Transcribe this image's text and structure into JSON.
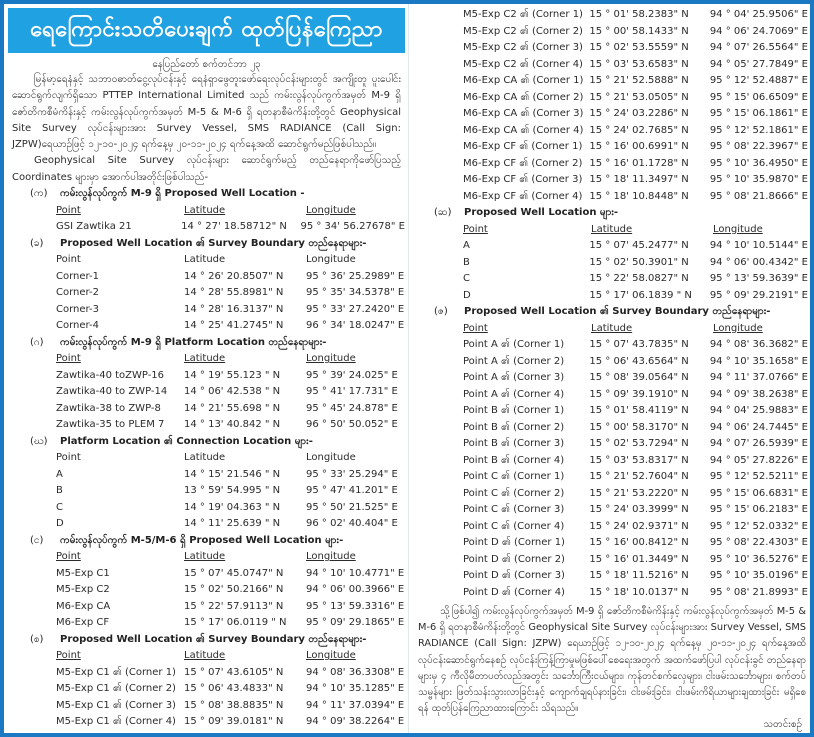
{
  "title": "ရေကြောင်းသတိပေးချက် ထုတ်ပြန်ကြေညာ",
  "dateline": "နေပြည်တော် စက်တင်ဘာ ၂၃",
  "intro_paragraphs": [
    "မြန်မာ့ရေနံနှင့် သဘာဝဓာတ်ငွေ့လုပ်ငန်းနှင့် ရေနံရှာဖွေတူးဖော်ရေးလုပ်ငန်းများတွင် အကျိုးတူ ပူးပေါင်းဆောင်ရွက်လျက်ရှိသော PTTEP International Limited သည် ကမ်းလွန်လုပ်ကွက်အမှတ် M-9 ရှိ ဇော်တိကစီမံကိန်းနှင့် ကမ်းလွန်လုပ်ကွက်အမှတ် M-5 & M-6 ရှိ ရတနာစီမံကိန်းတို့တွင် Geophysical Site Survey လုပ်ငန်းများအား Survey Vessel, SMS RADIANCE (Call Sign: JZPW)ရေယာဉ်ဖြင့် ၁၂-၁၀-၂၀၂၄ ရက်နေ့မှ ၂၀-၁၁-၂၀၂၄ ရက်နေ့အထိ ဆောင်ရွက်မည်ဖြစ်ပါသည်။",
    "Geophysical Site Survey လုပ်ငန်းများ ဆောင်ရွက်မည့် တည်နေရာကိုဖော်ပြသည့် Coordinates များမှာ အောက်ပါအတိုင်းဖြစ်ပါသည်-"
  ],
  "columns": {
    "point": "Point",
    "latitude": "Latitude",
    "longitude": "Longitude"
  },
  "left_sections": [
    {
      "label": "(က)",
      "heading": "ကမ်းလွန်လုပ်ကွက် M-9 ရှိ Proposed Well Location -",
      "underlined": true,
      "rows": [
        [
          "GSI Zawtika 21",
          "14 ° 27' 18.58712\" N",
          "95 ° 34' 56.27678\" E"
        ]
      ]
    },
    {
      "label": "(ခ)",
      "heading": "Proposed Well Location ၏ Survey Boundary တည်နေရာများ-",
      "underlined": false,
      "rows": [
        [
          "Corner-1",
          "14 ° 26' 20.8507\" N",
          "95 ° 36'  25.2989\" E"
        ],
        [
          "Corner-2",
          "14 ° 28' 55.8981\" N",
          "95 ° 35'  34.5378\" E"
        ],
        [
          "Corner-3",
          "14 ° 28' 16.3137\" N",
          "95 ° 33'  27.2420\" E"
        ],
        [
          "Corner-4",
          "14 ° 25' 41.2745\" N",
          "96 ° 34'  18.0247\" E"
        ]
      ]
    },
    {
      "label": "(ဂ)",
      "heading": "ကမ်းလွန်လုပ်ကွက် M-9 ရှိ Platform Location တည်နေရာများ-",
      "underlined": true,
      "rows": [
        [
          "Zawtika-40 toZWP-16",
          "14 ° 19' 55.123 \" N",
          "95 ° 39'  24.025\" E"
        ],
        [
          "Zawtika-40 to ZWP-14",
          "14 ° 06' 42.538 \" N",
          "95 ° 41'  17.731\" E"
        ],
        [
          "Zawtika-38 to ZWP-8",
          "14 ° 21' 55.698 \" N",
          "95 ° 45'  24.878\" E"
        ],
        [
          "Zawtika-35 to PLEM 7",
          "14 ° 13' 40.842 \" N",
          "96 ° 50'  50.052\" E"
        ]
      ]
    },
    {
      "label": "(ဃ)",
      "heading": "Platform Location ၏ Connection Location များ-",
      "underlined": false,
      "rows": [
        [
          "A",
          "14 ° 15' 21.546 \" N",
          "95 ° 33'  25.294\" E"
        ],
        [
          "B",
          "13 ° 59' 54.995 \" N",
          "95 ° 47'  41.201\" E"
        ],
        [
          "C",
          "14 ° 19' 04.363 \" N",
          "95 ° 50'  21.525\" E"
        ],
        [
          "D",
          "14 ° 11' 25.639 \" N",
          "96 ° 02'  40.404\" E"
        ]
      ]
    },
    {
      "label": "(င)",
      "heading": "ကမ်းလွန်လုပ်ကွက် M-5/M-6 ရှိ Proposed Well Location များ-",
      "underlined": true,
      "rows": [
        [
          "M5-Exp C1",
          "15 ° 07' 45.0747\" N",
          "94 ° 10'  10.4771\" E"
        ],
        [
          "M5-Exp C2",
          "15 ° 02' 50.2166\" N",
          "94 ° 06'  00.3966\" E"
        ],
        [
          "M6-Exp CA",
          "15 ° 22' 57.9113\" N",
          "95 ° 13'  59.3316\" E"
        ],
        [
          "M6-Exp CF",
          "15 ° 17' 06.0119 \" N",
          "95 ° 09'  29.1865\" E"
        ]
      ]
    },
    {
      "label": "(စ)",
      "heading": "Proposed Well Location ၏ Survey Boundary တည်နေရာများ-",
      "underlined": true,
      "rows": [
        [
          "M5-Exp C1 ၏ (Corner 1)",
          "15 ° 07' 43.6105\" N",
          "94 ° 08'  36.3308\" E"
        ],
        [
          "M5-Exp C1 ၏ (Corner 2)",
          "15 ° 06' 43.4833\" N",
          "94 ° 10'  35.1285\" E"
        ],
        [
          "M5-Exp C1 ၏ (Corner 3)",
          "15 ° 08' 38.8835\" N",
          "94 ° 11'  37.0394\" E"
        ],
        [
          "M5-Exp C1 ၏ (Corner 4)",
          "15 ° 09' 39.0181\" N",
          "94 ° 09'  38.2264\" E"
        ]
      ]
    }
  ],
  "right_sections": [
    {
      "label": "",
      "heading": "",
      "continuation": true,
      "rows": [
        [
          "M5-Exp C2 ၏ (Corner 1)",
          "15 ° 01' 58.2383\" N",
          "94 ° 04'  25.9506\" E"
        ],
        [
          "M5-Exp C2 ၏ (Corner 2)",
          "15 ° 00' 58.1433\" N",
          "94 ° 06'  24.7069\" E"
        ],
        [
          "M5-Exp C2 ၏ (Corner 3)",
          "15 ° 02' 53.5559\" N",
          "94 ° 07'  26.5564\" E"
        ],
        [
          "M5-Exp C2 ၏ (Corner 4)",
          "15 ° 03' 53.6583\" N",
          "94 ° 05'  27.7849\" E"
        ],
        [
          "M6-Exp CA ၏ (Corner 1)",
          "15 ° 21' 52.5888\" N",
          "95 ° 12'  52.4887\" E"
        ],
        [
          "M6-Exp CA ၏ (Corner 2)",
          "15 ° 21' 53.0505\" N",
          "95 ° 15'  06.6509\" E"
        ],
        [
          "M6-Exp CA ၏ (Corner 3)",
          "15 ° 24' 03.2286\" N",
          "95 ° 15'  06.1861\" E"
        ],
        [
          "M6-Exp CA ၏ (Corner 4)",
          "15 ° 24' 02.7685\" N",
          "95 ° 12'  52.1861\" E"
        ],
        [
          "M6-Exp CF ၏ (Corner 1)",
          "15 ° 16' 00.6991\" N",
          "95 ° 08'  22.3967\" E"
        ],
        [
          "M6-Exp CF ၏ (Corner 2)",
          "15 ° 16' 01.1728\" N",
          "95 ° 10'  36.4950\" E"
        ],
        [
          "M6-Exp CF ၏ (Corner 3)",
          "15 ° 18' 11.3497\" N",
          "95 ° 10'  35.9870\" E"
        ],
        [
          "M6-Exp CF ၏ (Corner 4)",
          "15 ° 18' 10.8448\" N",
          "95 ° 08'  21.8666\" E"
        ]
      ]
    },
    {
      "label": "(ဆ)",
      "heading": "Proposed Well Location များ-",
      "underlined": true,
      "rows": [
        [
          "A",
          "15 ° 07' 45.2477\" N",
          "94 ° 10'  10.5144\" E"
        ],
        [
          "B",
          "15 ° 02' 50.3901\" N",
          "94 ° 06'  00.4342\" E"
        ],
        [
          "C",
          "15 ° 22' 58.0827\" N",
          "95 ° 13'  59.3639\" E"
        ],
        [
          "D",
          "15 ° 17' 06.1839 \" N",
          "95 ° 09'  29.2191\" E"
        ]
      ]
    },
    {
      "label": "(ဇ)",
      "heading": "Proposed Well Location ၏ Survey Boundary တည်နေရာများ-",
      "underlined": true,
      "rows": [
        [
          "Point A ၏ (Corner 1)",
          "15 ° 07' 43.7835\" N",
          "94 ° 08'  36.3682\" E"
        ],
        [
          "Point A ၏ (Corner 2)",
          "15 ° 06' 43.6564\" N",
          "94 ° 10'  35.1658\" E"
        ],
        [
          "Point A ၏ (Corner 3)",
          "15 ° 08' 39.0564\" N",
          "94 ° 11'  37.0766\" E"
        ],
        [
          "Point A ၏ (Corner 4)",
          "15 ° 09' 39.1910\" N",
          "94 ° 09'  38.2638\" E"
        ],
        [
          "Point B ၏ (Corner 1)",
          "15 ° 01' 58.4119\" N",
          "94 ° 04'  25.9883\" E"
        ],
        [
          "Point B ၏ (Corner 2)",
          "15 ° 00' 58.3170\" N",
          "94 ° 06'  24.7445\" E"
        ],
        [
          "Point B ၏ (Corner 3)",
          "15 ° 02' 53.7294\" N",
          "94 ° 07'  26.5939\" E"
        ],
        [
          "Point B ၏ (Corner 4)",
          "15 ° 03' 53.8317\" N",
          "94 ° 05'  27.8226\" E"
        ],
        [
          "Point C ၏ (Corner 1)",
          "15 ° 21' 52.7604\" N",
          "95 ° 12'  52.5211\" E"
        ],
        [
          "Point C ၏ (Corner 2)",
          "15 ° 21' 53.2220\" N",
          "95 ° 15'  06.6831\" E"
        ],
        [
          "Point C ၏ (Corner 3)",
          "15 ° 24' 03.3999\" N",
          "95 ° 15'  06.2183\" E"
        ],
        [
          "Point C ၏ (Corner 4)",
          "15 ° 24' 02.9371\" N",
          "95 ° 12'  52.0332\" E"
        ],
        [
          "Point D ၏ (Corner 1)",
          "15 ° 16' 00.8412\" N",
          "95 ° 08'  22.4303\" E"
        ],
        [
          "Point D ၏ (Corner 2)",
          "15 ° 16' 01.3449\" N",
          "95 ° 10'  36.5276\" E"
        ],
        [
          "Point D ၏ (Corner 3)",
          "15 ° 18' 11.5216\" N",
          "95 ° 10'  35.0196\" E"
        ],
        [
          "Point D ၏ (Corner 4)",
          "15 ° 18' 10.0137\" N",
          "95 ° 08'  21.8993\" E"
        ]
      ]
    }
  ],
  "closing_paragraph": "သို့ဖြစ်ပါ၍ ကမ်းလွန်လုပ်ကွက်အမှတ် M-9 ရှိ ဇော်တိကစီမံကိန်းနှင့် ကမ်းလွန်လုပ်ကွက်အမှတ် M-5 & M-6 ရှိ ရတနာစီမံကိန်းတို့တွင် Geophysical Site Survey လုပ်ငန်းများအား Survey Vessel, SMS RADIANCE (Call Sign: JZPW) ရေယာဉ်ဖြင့် ၁၂-၁၀-၂၀၂၄ ရက်နေ့မှ ၂၀-၁၁-၂၀၂၄ ရက်နေ့အထိ လုပ်ငန်းဆောင်ရွက်နေစဉ် လုပ်ငန်းကြန့်ကြာမှုမဖြစ်ပေါ်စေရေးအတွက် အထက်ဖော်ပြပါ လုပ်ငန်းခွင် တည်နေရာများမှ ၄ ကီလိုမီတာပတ်လည်အတွင်း သင်္ဘောကြီးငယ်များ၊ ကုန်တင်စက်လှေများ၊ ငါးဖမ်းသင်္ဘောများ၊ စက်တပ်သမ္ဗန်များ ဖြတ်သန်းသွားလာခြင်းနှင့် ကျောက်ချရပ်နားခြင်း၊ ငါးဖမ်းခြင်း၊ ငါးဖမ်းကိရိယာများချထားခြင်း မရှိစေရန် ထုတ်ပြန်ကြေညာထားကြောင်း သိရသည်။",
  "signature": "သတင်းစဉ်",
  "colors": {
    "frame": "#1b78c2",
    "banner": "#1fa1e2",
    "banner_text": "#ffffff",
    "text": "#2b2b2b"
  }
}
